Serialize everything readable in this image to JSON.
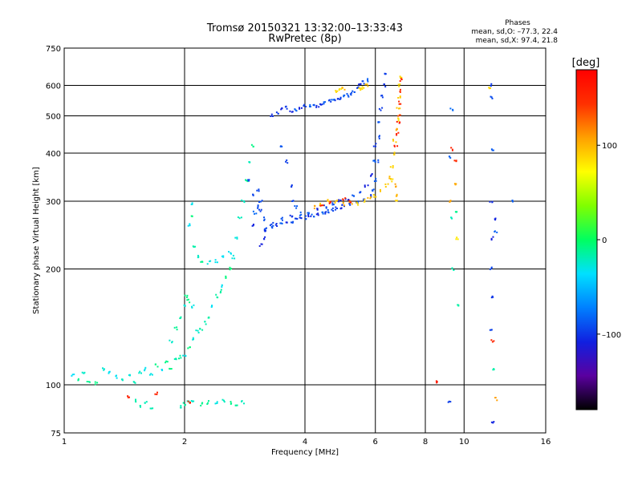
{
  "title_line1": "Tromsø 20150321 13:32:00–13:33:43",
  "title_line2": "RwPretec (8p)",
  "phases": {
    "header": "Phases",
    "line_o": "mean, sd,O: –77.3, 22.4",
    "line_x": "mean, sd,X:  97.4, 21.8"
  },
  "chart_data": {
    "type": "scatter",
    "xlabel": "Frequency [MHz]",
    "ylabel": "Stationary phase Virtual Height [km]",
    "x_scale": "log",
    "y_scale": "log",
    "xlim": [
      1,
      16
    ],
    "ylim": [
      75,
      750
    ],
    "x_ticks": [
      {
        "v": 1,
        "label": "1"
      },
      {
        "v": 2,
        "label": "2"
      },
      {
        "v": 4,
        "label": "4"
      },
      {
        "v": 6,
        "label": "6"
      },
      {
        "v": 8,
        "label": "8"
      },
      {
        "v": 10,
        "label": "10"
      },
      {
        "v": 16,
        "label": "16"
      }
    ],
    "y_ticks": [
      {
        "v": 75,
        "label": "75"
      },
      {
        "v": 100,
        "label": "100"
      },
      {
        "v": 200,
        "label": "200"
      },
      {
        "v": 300,
        "label": "300"
      },
      {
        "v": 400,
        "label": "400"
      },
      {
        "v": 500,
        "label": "500"
      },
      {
        "v": 600,
        "label": "600"
      },
      {
        "v": 750,
        "label": "750"
      }
    ],
    "grid": true,
    "colorbar": {
      "label": "[deg]",
      "range": [
        -180,
        180
      ],
      "ticks": [
        {
          "v": 100,
          "label": "100"
        },
        {
          "v": 0,
          "label": "0"
        },
        {
          "v": -100,
          "label": "–100"
        }
      ],
      "colors": [
        "#000000",
        "#5a00a0",
        "#1020e0",
        "#0080ff",
        "#00e0ff",
        "#00ff60",
        "#80ff00",
        "#ffff00",
        "#ffa000",
        "#ff3000",
        "#ff0000"
      ]
    },
    "series": [
      {
        "phase_deg": -20,
        "points": [
          [
            1.05,
            106
          ],
          [
            1.08,
            103
          ],
          [
            1.12,
            108
          ],
          [
            1.15,
            102
          ],
          [
            1.2,
            101
          ],
          [
            1.25,
            110
          ],
          [
            1.3,
            108
          ],
          [
            1.35,
            105
          ],
          [
            1.4,
            103
          ],
          [
            1.45,
            106
          ],
          [
            1.5,
            102
          ],
          [
            1.55,
            108
          ],
          [
            1.6,
            110
          ],
          [
            1.65,
            107
          ],
          [
            1.7,
            112
          ],
          [
            1.75,
            109
          ],
          [
            1.8,
            114
          ],
          [
            1.85,
            111
          ],
          [
            1.9,
            116
          ],
          [
            1.95,
            118
          ],
          [
            2.0,
            120
          ],
          [
            2.05,
            125
          ],
          [
            2.1,
            132
          ],
          [
            2.15,
            138
          ],
          [
            2.2,
            140
          ],
          [
            2.25,
            145
          ],
          [
            2.3,
            150
          ],
          [
            2.35,
            160
          ],
          [
            2.4,
            170
          ],
          [
            2.45,
            175
          ],
          [
            2.5,
            180
          ],
          [
            2.55,
            190
          ],
          [
            2.6,
            200
          ],
          [
            2.65,
            215
          ],
          [
            2.7,
            240
          ],
          [
            2.75,
            270
          ],
          [
            2.8,
            300
          ],
          [
            2.85,
            340
          ],
          [
            2.9,
            380
          ],
          [
            2.95,
            420
          ],
          [
            1.85,
            130
          ],
          [
            1.9,
            140
          ],
          [
            1.95,
            150
          ],
          [
            2.0,
            160
          ],
          [
            2.02,
            170
          ],
          [
            2.05,
            165
          ],
          [
            2.1,
            160
          ],
          [
            2.05,
            260
          ],
          [
            2.08,
            275
          ],
          [
            2.1,
            295
          ],
          [
            2.12,
            230
          ],
          [
            2.15,
            215
          ],
          [
            2.2,
            210
          ],
          [
            2.3,
            208
          ],
          [
            2.4,
            210
          ],
          [
            2.5,
            215
          ],
          [
            2.6,
            220
          ],
          [
            1.95,
            88
          ],
          [
            2.0,
            89
          ],
          [
            2.05,
            90
          ],
          [
            2.1,
            90
          ],
          [
            2.2,
            89
          ],
          [
            2.3,
            90
          ],
          [
            2.4,
            90
          ],
          [
            2.5,
            91
          ],
          [
            2.6,
            90
          ],
          [
            2.7,
            89
          ],
          [
            2.8,
            90
          ],
          [
            1.5,
            91
          ],
          [
            1.55,
            88
          ],
          [
            1.6,
            90
          ],
          [
            1.65,
            87
          ],
          [
            9.4,
            200
          ],
          [
            9.7,
            160
          ],
          [
            9.3,
            270
          ],
          [
            9.6,
            280
          ],
          [
            11.8,
            110
          ]
        ]
      },
      {
        "phase_deg": -95,
        "points": [
          [
            2.95,
            260
          ],
          [
            3.0,
            280
          ],
          [
            3.05,
            320
          ],
          [
            3.1,
            300
          ],
          [
            3.15,
            270
          ],
          [
            3.2,
            255
          ],
          [
            3.3,
            258
          ],
          [
            3.4,
            260
          ],
          [
            3.5,
            262
          ],
          [
            3.6,
            264
          ],
          [
            3.7,
            266
          ],
          [
            3.8,
            268
          ],
          [
            3.9,
            270
          ],
          [
            4.0,
            272
          ],
          [
            4.1,
            274
          ],
          [
            4.2,
            275
          ],
          [
            4.3,
            277
          ],
          [
            4.4,
            279
          ],
          [
            4.5,
            281
          ],
          [
            4.6,
            283
          ],
          [
            4.7,
            285
          ],
          [
            4.8,
            287
          ],
          [
            4.9,
            289
          ],
          [
            5.0,
            291
          ],
          [
            5.2,
            294
          ],
          [
            5.4,
            298
          ],
          [
            5.6,
            303
          ],
          [
            5.8,
            310
          ],
          [
            5.9,
            320
          ],
          [
            6.0,
            340
          ],
          [
            6.05,
            380
          ],
          [
            6.1,
            440
          ],
          [
            6.15,
            480
          ],
          [
            6.2,
            520
          ],
          [
            6.25,
            560
          ],
          [
            6.3,
            600
          ],
          [
            6.35,
            640
          ],
          [
            3.1,
            230
          ],
          [
            3.15,
            240
          ],
          [
            3.2,
            250
          ],
          [
            3.3,
            262
          ],
          [
            3.5,
            270
          ],
          [
            3.7,
            275
          ],
          [
            3.9,
            278
          ],
          [
            4.1,
            280
          ],
          [
            4.3,
            285
          ],
          [
            4.5,
            290
          ],
          [
            4.7,
            296
          ],
          [
            4.9,
            300
          ],
          [
            5.1,
            305
          ],
          [
            5.3,
            310
          ],
          [
            5.5,
            318
          ],
          [
            5.7,
            328
          ],
          [
            5.85,
            350
          ],
          [
            5.95,
            380
          ],
          [
            6.0,
            420
          ],
          [
            3.3,
            500
          ],
          [
            3.4,
            510
          ],
          [
            3.5,
            520
          ],
          [
            3.6,
            525
          ],
          [
            3.7,
            515
          ],
          [
            3.8,
            520
          ],
          [
            3.9,
            525
          ],
          [
            4.0,
            530
          ],
          [
            4.1,
            532
          ],
          [
            4.2,
            535
          ],
          [
            4.3,
            530
          ],
          [
            4.4,
            538
          ],
          [
            4.5,
            540
          ],
          [
            4.6,
            545
          ],
          [
            4.7,
            548
          ],
          [
            4.8,
            552
          ],
          [
            4.9,
            556
          ],
          [
            5.0,
            560
          ],
          [
            5.1,
            565
          ],
          [
            5.2,
            572
          ],
          [
            5.3,
            580
          ],
          [
            5.4,
            590
          ],
          [
            5.5,
            600
          ],
          [
            5.6,
            610
          ],
          [
            5.7,
            620
          ],
          [
            3.5,
            420
          ],
          [
            3.6,
            380
          ],
          [
            3.7,
            330
          ],
          [
            3.75,
            300
          ],
          [
            3.8,
            290
          ],
          [
            2.9,
            340
          ],
          [
            2.95,
            310
          ],
          [
            3.05,
            290
          ],
          [
            3.1,
            285
          ],
          [
            9.2,
            90
          ],
          [
            9.3,
            520
          ],
          [
            9.2,
            390
          ],
          [
            11.6,
            600
          ],
          [
            11.7,
            560
          ],
          [
            11.8,
            410
          ],
          [
            11.7,
            300
          ],
          [
            11.8,
            240
          ],
          [
            11.7,
            200
          ],
          [
            11.8,
            170
          ],
          [
            11.7,
            140
          ],
          [
            11.8,
            80
          ],
          [
            11.9,
            270
          ],
          [
            12.0,
            250
          ],
          [
            13.2,
            300
          ]
        ]
      },
      {
        "phase_deg": 95,
        "points": [
          [
            4.2,
            290
          ],
          [
            4.4,
            295
          ],
          [
            4.6,
            300
          ],
          [
            4.8,
            300
          ],
          [
            5.0,
            295
          ],
          [
            5.2,
            298
          ],
          [
            5.4,
            295
          ],
          [
            5.6,
            300
          ],
          [
            5.8,
            305
          ],
          [
            6.0,
            310
          ],
          [
            6.2,
            320
          ],
          [
            6.4,
            330
          ],
          [
            6.5,
            345
          ],
          [
            6.6,
            370
          ],
          [
            6.65,
            400
          ],
          [
            6.7,
            430
          ],
          [
            6.75,
            460
          ],
          [
            6.8,
            490
          ],
          [
            6.85,
            520
          ],
          [
            6.9,
            560
          ],
          [
            6.92,
            600
          ],
          [
            6.95,
            630
          ],
          [
            5.5,
            585
          ],
          [
            5.6,
            590
          ],
          [
            5.7,
            600
          ],
          [
            4.8,
            580
          ],
          [
            4.9,
            585
          ],
          [
            5.0,
            588
          ],
          [
            6.7,
            330
          ],
          [
            6.75,
            310
          ],
          [
            6.8,
            300
          ],
          [
            6.6,
            340
          ],
          [
            12.0,
            92
          ],
          [
            11.6,
            590
          ],
          [
            9.5,
            330
          ],
          [
            9.6,
            240
          ],
          [
            9.2,
            300
          ]
        ]
      },
      {
        "phase_deg": 150,
        "points": [
          [
            6.75,
            420
          ],
          [
            6.8,
            450
          ],
          [
            6.85,
            480
          ],
          [
            6.9,
            500
          ],
          [
            6.9,
            540
          ],
          [
            6.95,
            580
          ],
          [
            6.95,
            620
          ],
          [
            4.4,
            292
          ],
          [
            4.6,
            298
          ],
          [
            5.0,
            305
          ],
          [
            5.2,
            300
          ],
          [
            1.45,
            93
          ],
          [
            1.7,
            95
          ],
          [
            2.05,
            90
          ],
          [
            9.3,
            410
          ],
          [
            9.5,
            380
          ],
          [
            11.8,
            130
          ],
          [
            8.5,
            102
          ]
        ]
      }
    ]
  }
}
